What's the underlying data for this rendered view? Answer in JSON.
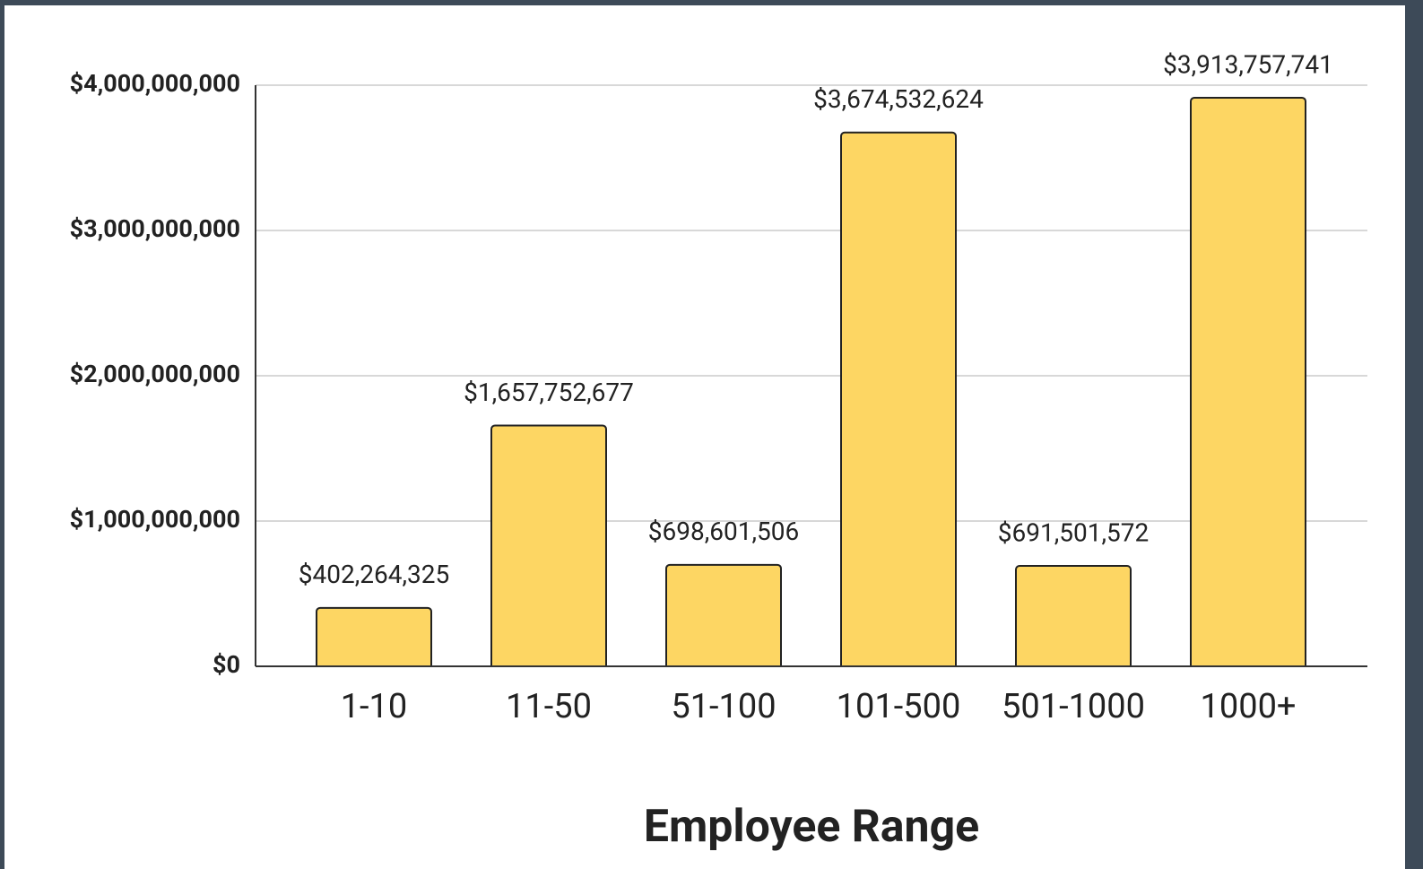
{
  "chart_data": {
    "type": "bar",
    "x_label": "Employee Range",
    "categories": [
      "1-10",
      "11-50",
      "51-100",
      "101-500",
      "501-1000",
      "1000+"
    ],
    "values": [
      402264325,
      1657752677,
      698601506,
      3674532624,
      691501572,
      3913757741
    ],
    "value_labels": [
      "$402,264,325",
      "$1,657,752,677",
      "$698,601,506",
      "$3,674,532,624",
      "$691,501,572",
      "$3,913,757,741"
    ],
    "color": "#fdd663",
    "ylim": [
      0,
      4000000000
    ],
    "yticks": [
      {
        "value": 0,
        "label": "$0"
      },
      {
        "value": 1000000000,
        "label": "$1,000,000,000"
      },
      {
        "value": 2000000000,
        "label": "$2,000,000,000"
      },
      {
        "value": 3000000000,
        "label": "$3,000,000,000"
      },
      {
        "value": 4000000000,
        "label": "$4,000,000,000"
      }
    ],
    "grid": true
  }
}
